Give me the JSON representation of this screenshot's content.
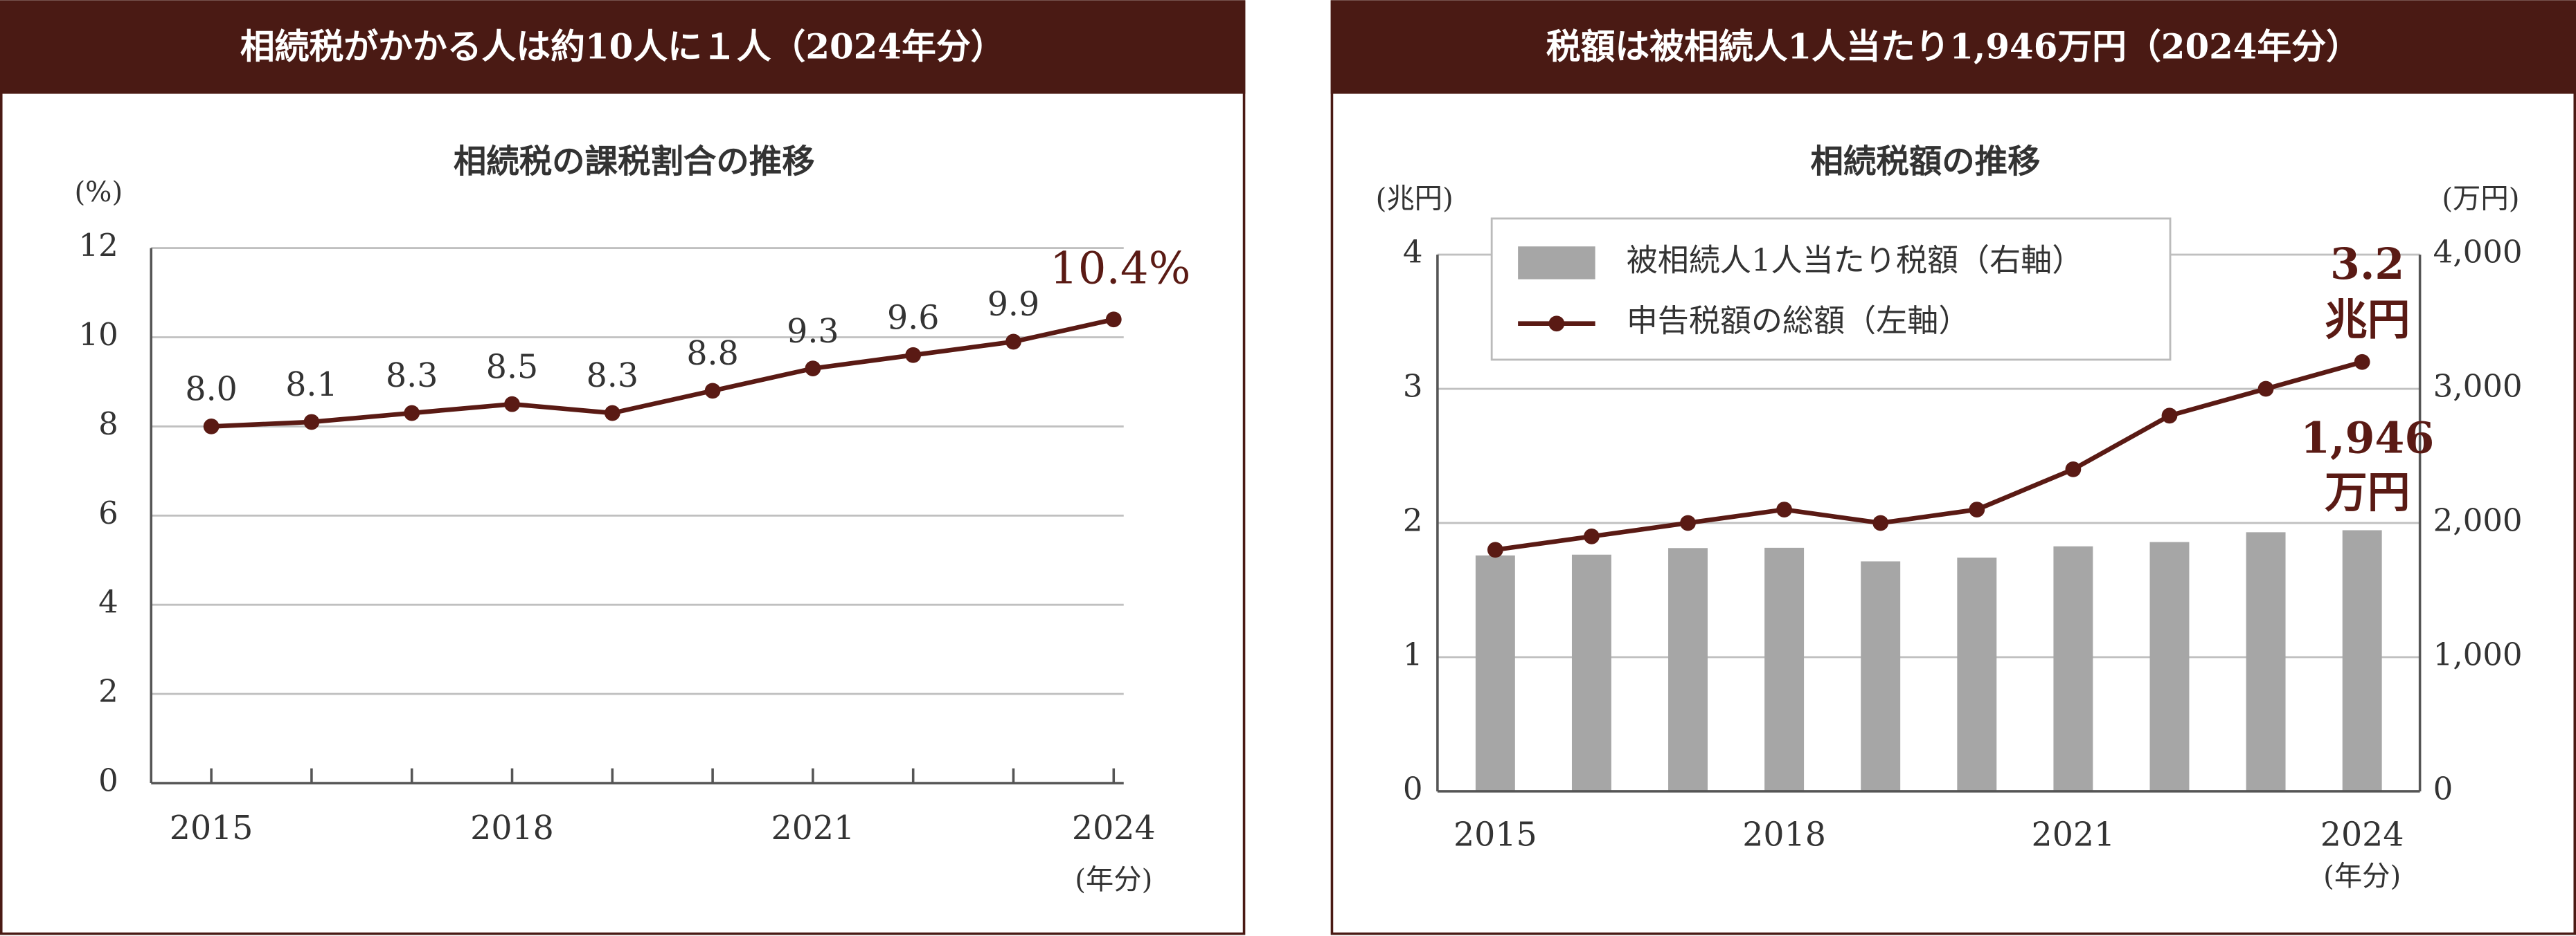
{
  "chart_data": [
    {
      "type": "line",
      "header": "相続税がかかる人は約10人に１人（2024年分）",
      "title": "相続税の課税割合の推移",
      "y_label": "(%)",
      "x_unit": "(年分)",
      "x": [
        2015,
        2016,
        2017,
        2018,
        2019,
        2020,
        2021,
        2022,
        2023,
        2024
      ],
      "values": [
        8.0,
        8.1,
        8.3,
        8.5,
        8.3,
        8.8,
        9.3,
        9.6,
        9.9,
        10.4
      ],
      "value_labels": [
        "8.0",
        "8.1",
        "8.3",
        "8.5",
        "8.3",
        "8.8",
        "9.3",
        "9.6",
        "9.9",
        "10.4%"
      ],
      "color": "#5a1a14",
      "xlim": [
        2014.4,
        2024.1
      ],
      "xticks": [
        2015,
        2018,
        2021,
        2024
      ],
      "ylim": [
        0,
        12
      ],
      "yticks": [
        0,
        2,
        4,
        6,
        8,
        10,
        12
      ],
      "grid": true
    },
    {
      "type": "combo",
      "header": "税額は被相続人1人当たり1,946万円（2024年分）",
      "title": "相続税額の推移",
      "y_label": "(兆円)",
      "y2_label": "(万円)",
      "x_unit": "(年分)",
      "x": [
        2015,
        2016,
        2017,
        2018,
        2019,
        2020,
        2021,
        2022,
        2023,
        2024
      ],
      "series": [
        {
          "name": "被相続人1人当たり税額（右軸）",
          "kind": "bar",
          "axis": "y2",
          "color": "#a6a6a6",
          "values": [
            1758,
            1764,
            1813,
            1815,
            1714,
            1742,
            1826,
            1858,
            1931,
            1946
          ]
        },
        {
          "name": "申告税額の総額（左軸）",
          "kind": "line",
          "color": "#5a1a14",
          "values": [
            1.8,
            1.9,
            2.0,
            2.1,
            2.0,
            2.1,
            2.4,
            2.8,
            3.0,
            3.2
          ]
        }
      ],
      "annotations": [
        {
          "lines": [
            "3.2",
            "兆円"
          ]
        },
        {
          "lines": [
            "1,946",
            "万円"
          ]
        }
      ],
      "xlim": [
        2014.4,
        2024.6
      ],
      "xticks": [
        2015,
        2018,
        2021,
        2024
      ],
      "ylim": [
        0,
        4
      ],
      "yticks": [
        0,
        1,
        2,
        3,
        4
      ],
      "y2lim": [
        0,
        4000
      ],
      "y2ticks": [
        0,
        {
          "value": 1000,
          "label": "1,000"
        },
        {
          "value": 2000,
          "label": "2,000"
        },
        {
          "value": 3000,
          "label": "3,000"
        },
        {
          "value": 4000,
          "label": "4,000"
        }
      ],
      "grid": true,
      "legend": "top-left"
    }
  ]
}
